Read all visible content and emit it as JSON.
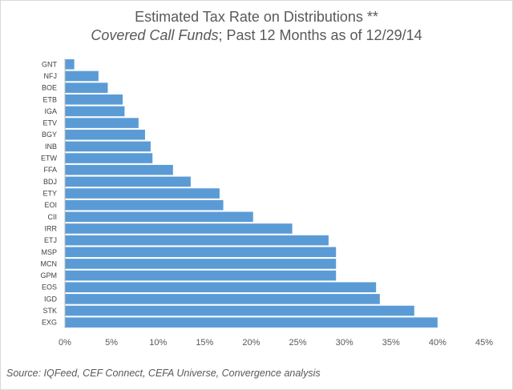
{
  "title": "Estimated Tax Rate on Distributions **",
  "subtitle_italic": "Covered Call Funds",
  "subtitle_rest": "; Past 12 Months as of 12/29/14",
  "source": "Source:  IQFeed, CEF Connect, CEFA Universe, Convergence analysis",
  "chart_data": {
    "type": "bar",
    "orientation": "horizontal",
    "title": "Estimated Tax Rate on Distributions **",
    "subtitle": "Covered Call Funds; Past 12 Months as of 12/29/14",
    "categories": [
      "GNT",
      "NFJ",
      "BOE",
      "ETB",
      "IGA",
      "ETV",
      "BGY",
      "INB",
      "ETW",
      "FFA",
      "BDJ",
      "ETY",
      "EOI",
      "CII",
      "IRR",
      "ETJ",
      "MSP",
      "MCN",
      "GPM",
      "EOS",
      "IGD",
      "STK",
      "EXG"
    ],
    "values": [
      1.0,
      3.6,
      4.6,
      6.2,
      6.4,
      7.9,
      8.6,
      9.2,
      9.4,
      11.6,
      13.5,
      16.6,
      17.0,
      20.2,
      24.4,
      28.3,
      29.1,
      29.1,
      29.1,
      33.4,
      33.8,
      37.5,
      40.0
    ],
    "xlim": [
      0,
      45
    ],
    "xticks": [
      "0%",
      "5%",
      "10%",
      "15%",
      "20%",
      "25%",
      "30%",
      "35%",
      "40%",
      "45%"
    ],
    "grid": false,
    "bar_color": "#5b9bd5"
  }
}
